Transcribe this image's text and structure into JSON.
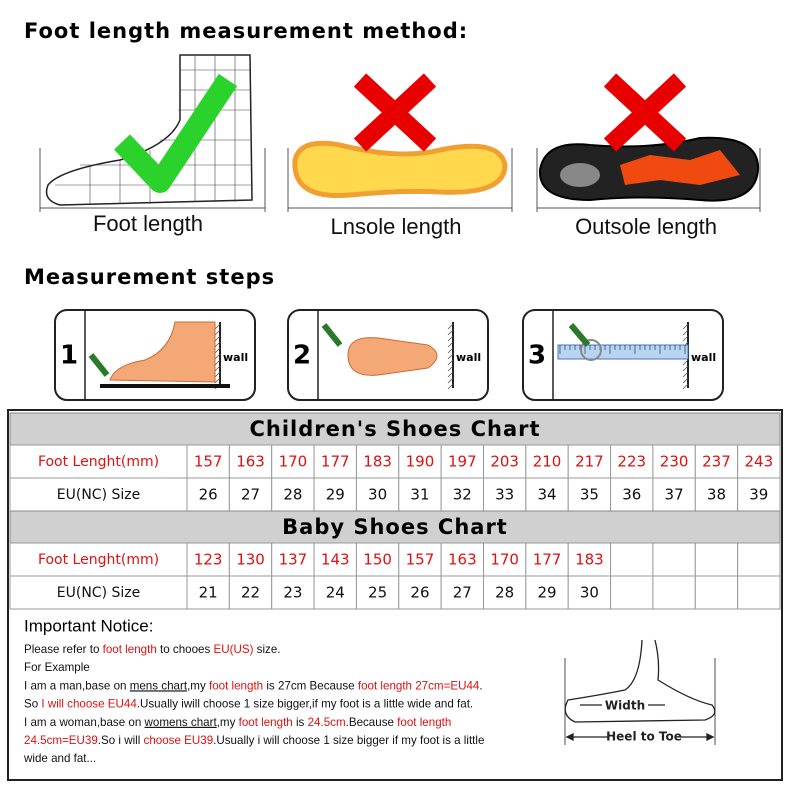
{
  "header": {
    "title": "Foot length measurement method:"
  },
  "methods": [
    {
      "label": "Foot length"
    },
    {
      "label": "Lnsole length"
    },
    {
      "label": "Outsole length"
    }
  ],
  "steps": {
    "title": "Measurement steps",
    "items": [
      {
        "number": "1",
        "wall": "wall"
      },
      {
        "number": "2",
        "wall": "wall"
      },
      {
        "number": "3",
        "wall": "wall"
      }
    ]
  },
  "children_chart": {
    "title": "Children's Shoes Chart",
    "rows": [
      {
        "label": "Foot Lenght(mm)",
        "color": "#e01010",
        "cells": [
          157,
          163,
          170,
          177,
          183,
          190,
          197,
          203,
          210,
          217,
          223,
          230,
          237,
          243
        ]
      },
      {
        "label": "EU(NC) Size",
        "color": "#111111",
        "cells": [
          26,
          27,
          28,
          29,
          30,
          31,
          32,
          33,
          34,
          35,
          36,
          37,
          38,
          39
        ]
      }
    ]
  },
  "baby_chart": {
    "title": "Baby Shoes Chart",
    "rows": [
      {
        "label": "Foot Lenght(mm)",
        "color": "#e01010",
        "cells": [
          123,
          130,
          137,
          143,
          150,
          157,
          163,
          170,
          177,
          183
        ]
      },
      {
        "label": "EU(NC) Size",
        "color": "#111111",
        "cells": [
          21,
          22,
          23,
          24,
          25,
          26,
          27,
          28,
          29,
          30
        ]
      }
    ]
  },
  "notice": {
    "title": "Important Notice:",
    "lines": [
      [
        {
          "text": "Please refer to "
        },
        {
          "text": "foot length",
          "color": "#e01010"
        },
        {
          "text": " to chooes "
        },
        {
          "text": "EU(US)",
          "color": "#e01010"
        },
        {
          "text": " size."
        }
      ],
      [
        {
          "text": "For Example"
        }
      ],
      [
        {
          "text": "I am a man,base on "
        },
        {
          "text": "mens chart",
          "underline": true
        },
        {
          "text": ",my "
        },
        {
          "text": "foot length",
          "color": "#e01010"
        },
        {
          "text": " is 27cm Because "
        },
        {
          "text": "foot length 27cm=EU44",
          "color": "#e01010"
        },
        {
          "text": "."
        }
      ],
      [
        {
          "text": "So "
        },
        {
          "text": "I will choose EU44",
          "color": "#e01010"
        },
        {
          "text": ".Usually iwill choose 1 size bigger,if my foot is a little wide and fat."
        }
      ],
      [
        {
          "text": "I am a woman,base on "
        },
        {
          "text": "womens chart",
          "underline": true
        },
        {
          "text": ",my "
        },
        {
          "text": "foot length",
          "color": "#e01010"
        },
        {
          "text": " is "
        },
        {
          "text": "24.5cm",
          "color": "#e01010"
        },
        {
          "text": ".Because "
        },
        {
          "text": "foot length",
          "color": "#e01010"
        }
      ],
      [
        {
          "text": "24.5cm=EU39",
          "color": "#e01010"
        },
        {
          "text": ".So i will "
        },
        {
          "text": "choose EU39",
          "color": "#e01010"
        },
        {
          "text": ".Usually i will choose 1 size bigger if my foot is a little"
        }
      ],
      [
        {
          "text": "wide and fat..."
        }
      ]
    ]
  },
  "diagram": {
    "width": "Width",
    "length": "Heel to Toe"
  }
}
